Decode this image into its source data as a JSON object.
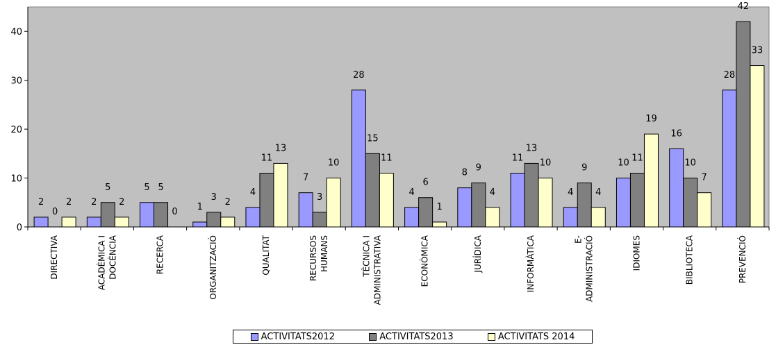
{
  "chart_data": {
    "type": "bar",
    "title": "",
    "xlabel": "",
    "ylabel": "",
    "ylim": [
      0,
      45
    ],
    "yticks": [
      0,
      10,
      20,
      30,
      40
    ],
    "grid": false,
    "legend_position": "bottom",
    "plot_background": "#c0c0c0",
    "categories": [
      [
        "DIRECTIVA"
      ],
      [
        "ACADÈMICA I",
        "DOCÈNCIA"
      ],
      [
        "RECERCA"
      ],
      [
        "ORGANITZACIÓ"
      ],
      [
        "QUALITAT"
      ],
      [
        "RECURSOS",
        "HUMANS"
      ],
      [
        "TÈCNICA I",
        "ADMINISTRATIVA"
      ],
      [
        "ECONÒMICA"
      ],
      [
        "JURÍDICA"
      ],
      [
        "INFORMÀTICA"
      ],
      [
        "E-",
        "ADMINISTRACIÓ"
      ],
      [
        "IDIOMES"
      ],
      [
        "BIBLIOTECA"
      ],
      [
        "PREVENCIÓ"
      ]
    ],
    "series": [
      {
        "name": "ACTIVITATS2012",
        "color": "#9999ff",
        "values": [
          2,
          2,
          5,
          1,
          4,
          7,
          28,
          4,
          8,
          11,
          4,
          10,
          16,
          28
        ]
      },
      {
        "name": "ACTIVITATS2013",
        "color": "#808080",
        "values": [
          0,
          5,
          5,
          3,
          11,
          3,
          15,
          6,
          9,
          13,
          9,
          11,
          10,
          42
        ]
      },
      {
        "name": "ACTIVITATS 2014",
        "color": "#ffffcc",
        "values": [
          2,
          2,
          0,
          2,
          13,
          10,
          11,
          1,
          4,
          10,
          4,
          19,
          7,
          33
        ]
      }
    ]
  }
}
